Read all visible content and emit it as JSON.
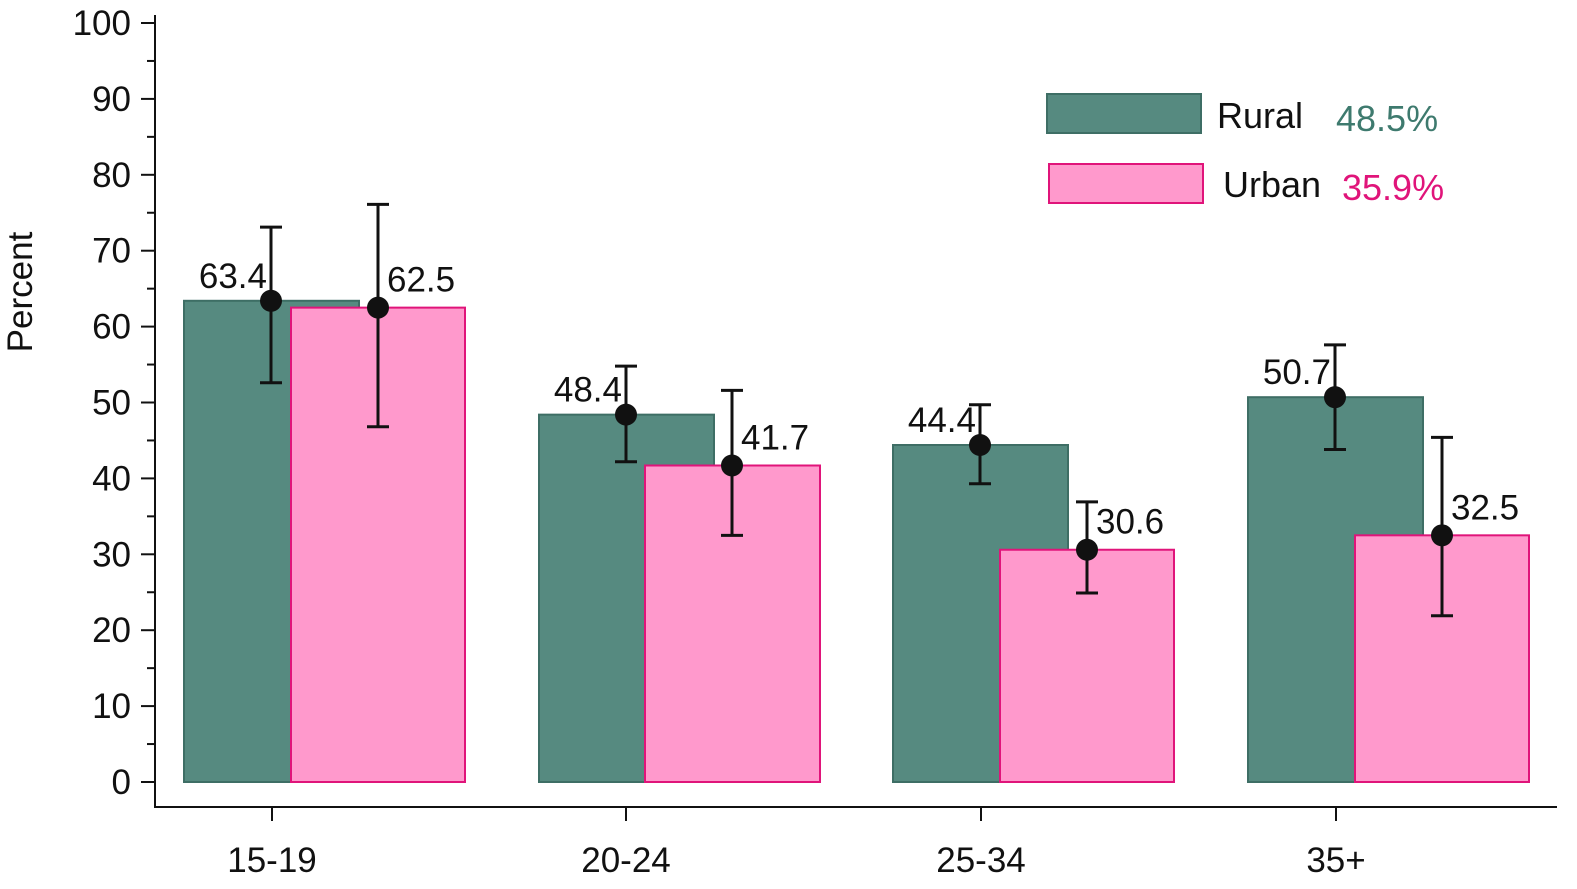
{
  "chart_data": {
    "type": "bar",
    "categories": [
      "15-19",
      "20-24",
      "25-34",
      "35+"
    ],
    "series": [
      {
        "name": "Rural",
        "overall": "48.5%",
        "values": [
          63.4,
          48.4,
          44.4,
          50.7
        ],
        "labels": [
          "63.4",
          "48.4",
          "44.4",
          "50.7"
        ],
        "ci_low": [
          52.6,
          42.2,
          39.3,
          43.8
        ],
        "ci_high": [
          73.1,
          54.8,
          49.7,
          57.6
        ],
        "color": "#568a80",
        "stroke": "#3e6e65",
        "pct_color": "#3e7a6e"
      },
      {
        "name": "Urban",
        "overall": "35.9%",
        "values": [
          62.5,
          41.7,
          30.6,
          32.5
        ],
        "labels": [
          "62.5",
          "41.7",
          "30.6",
          "32.5"
        ],
        "ci_low": [
          46.8,
          32.5,
          24.9,
          21.9
        ],
        "ci_high": [
          76.1,
          51.6,
          36.9,
          45.4
        ],
        "color": "#ff99cc",
        "stroke": "#e0147a",
        "pct_color": "#e0147a"
      }
    ],
    "ylabel": "Percent",
    "ylim": [
      0,
      100
    ],
    "yticks": [
      "0",
      "10",
      "20",
      "30",
      "40",
      "50",
      "60",
      "70",
      "80",
      "90",
      "100"
    ],
    "legend_position": "top-right",
    "grid": false
  }
}
